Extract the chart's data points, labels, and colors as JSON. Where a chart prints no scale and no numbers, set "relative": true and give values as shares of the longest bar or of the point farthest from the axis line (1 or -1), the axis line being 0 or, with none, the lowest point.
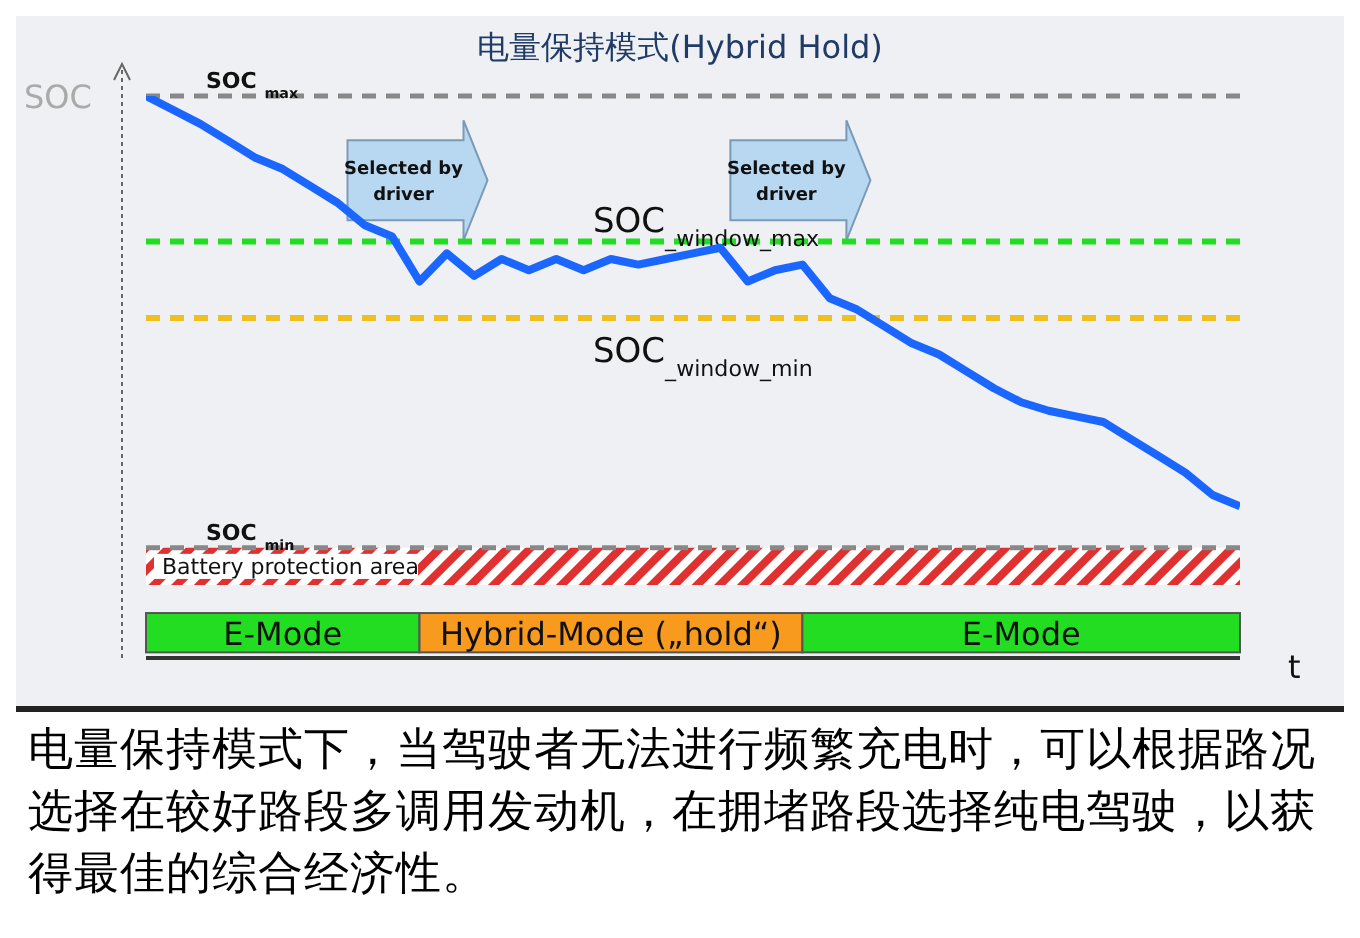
{
  "chart_data": {
    "type": "line",
    "title": "电量保持模式(Hybrid Hold)",
    "ylabel": "SOC",
    "xlabel": "t",
    "relative": true,
    "categories": [
      null,
      null,
      null,
      null,
      null,
      null,
      null,
      null,
      null,
      null,
      null,
      null,
      null,
      null,
      null,
      null,
      null,
      null,
      null,
      null,
      null,
      null,
      null,
      null,
      null,
      null,
      null,
      null,
      null,
      null,
      null,
      null,
      null,
      null,
      null,
      null,
      null,
      null,
      null,
      null,
      null
    ],
    "series": [
      {
        "color": "#1a66ff",
        "values": [
          1.0,
          0.975,
          0.95,
          0.92,
          0.89,
          0.87,
          0.84,
          0.81,
          0.77,
          0.75,
          0.67,
          0.72,
          0.68,
          0.71,
          0.69,
          0.71,
          0.69,
          0.71,
          0.7,
          0.71,
          0.72,
          0.73,
          0.67,
          0.69,
          0.7,
          0.64,
          0.62,
          0.59,
          0.56,
          0.54,
          0.51,
          0.48,
          0.455,
          0.44,
          0.43,
          0.42,
          0.39,
          0.36,
          0.33,
          0.29,
          0.27
        ]
      }
    ],
    "ref_lines": [
      {
        "axis": "y",
        "value": 1.0,
        "label": "SOC $_{max}$",
        "color": "#888888",
        "line_style": "dashed"
      },
      {
        "axis": "y",
        "value": 0.196,
        "label": "SOC $_{min}$",
        "color": "#888888",
        "line_style": "dashed"
      },
      {
        "axis": "y",
        "value": 0.741,
        "label": "SOC$_{_window_max}$",
        "color": "#22dd22",
        "line_style": "dashed"
      },
      {
        "axis": "y",
        "value": 0.605,
        "label": "SOC$_{_window_min}$",
        "color": "#f0c020",
        "line_style": "dashed"
      }
    ],
    "bands": [
      {
        "axis": "y",
        "from": 0.13,
        "to": 0.196,
        "label": "Battery protection area",
        "color": "#e03030"
      }
    ],
    "annotations": [
      "Selected by driver",
      "Selected by driver",
      "E-Mode",
      "Hybrid-Mode („hold“)",
      "E-Mode",
      "电量保持模式下，当驾驶者无法进行频繁充电时，可以根据路况选择在较好路段多调用发动机，在拥堵路段选择纯电驾驶，以获得最佳的综合经济性。"
    ]
  }
}
